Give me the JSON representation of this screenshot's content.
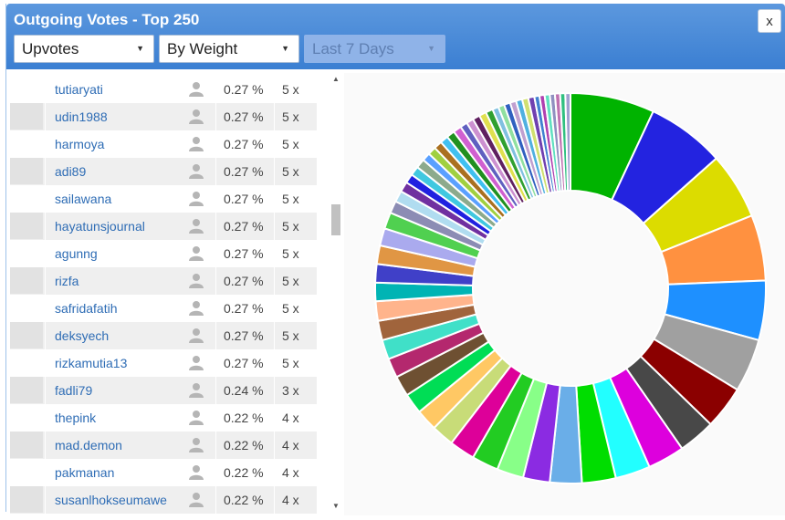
{
  "dialog": {
    "title": "Outgoing Votes - Top 250",
    "close_label": "x",
    "filters": [
      {
        "value": "Upvotes",
        "disabled": false
      },
      {
        "value": "By Weight",
        "disabled": false
      },
      {
        "value": "Last 7 Days",
        "disabled": true
      }
    ]
  },
  "rows": [
    {
      "name": "tutiaryati",
      "pct": "0.27 %",
      "count": "5 x"
    },
    {
      "name": "udin1988",
      "pct": "0.27 %",
      "count": "5 x"
    },
    {
      "name": "harmoya",
      "pct": "0.27 %",
      "count": "5 x"
    },
    {
      "name": "adi89",
      "pct": "0.27 %",
      "count": "5 x"
    },
    {
      "name": "sailawana",
      "pct": "0.27 %",
      "count": "5 x"
    },
    {
      "name": "hayatunsjournal",
      "pct": "0.27 %",
      "count": "5 x"
    },
    {
      "name": "agunng",
      "pct": "0.27 %",
      "count": "5 x"
    },
    {
      "name": "rizfa",
      "pct": "0.27 %",
      "count": "5 x"
    },
    {
      "name": "safridafatih",
      "pct": "0.27 %",
      "count": "5 x"
    },
    {
      "name": "deksyech",
      "pct": "0.27 %",
      "count": "5 x"
    },
    {
      "name": "rizkamutia13",
      "pct": "0.27 %",
      "count": "5 x"
    },
    {
      "name": "fadli79",
      "pct": "0.24 %",
      "count": "3 x"
    },
    {
      "name": "thepink",
      "pct": "0.22 %",
      "count": "4 x"
    },
    {
      "name": "mad.demon",
      "pct": "0.22 %",
      "count": "4 x"
    },
    {
      "name": "pakmanan",
      "pct": "0.22 %",
      "count": "4 x"
    },
    {
      "name": "susanlhokseumawe",
      "pct": "0.22 %",
      "count": "4 x"
    }
  ],
  "chart_data": {
    "type": "pie",
    "donut": true,
    "values": [
      8.2,
      7.6,
      6.5,
      6.4,
      5.8,
      5.2,
      4.2,
      3.6,
      3.6,
      3.4,
      3.3,
      3.1,
      2.6,
      2.6,
      2.6,
      2.5,
      2.2,
      2.1,
      2.0,
      2.0,
      1.9,
      1.9,
      1.9,
      1.9,
      1.8,
      1.8,
      1.8,
      1.7,
      1.6,
      1.2,
      1.1,
      1.0,
      0.9,
      0.9,
      0.9,
      0.8,
      0.8,
      0.8,
      0.8,
      0.8,
      0.8,
      0.7,
      0.7,
      0.7,
      0.7,
      0.7,
      0.6,
      0.6,
      0.6,
      0.6,
      0.6,
      0.6,
      0.6,
      0.5,
      0.5,
      0.5,
      0.5,
      0.5,
      0.5,
      0.5
    ],
    "colors": [
      "#00b300",
      "#2323e0",
      "#dcdc00",
      "#ff9140",
      "#1e90ff",
      "#a0a0a0",
      "#8b0000",
      "#484848",
      "#dd00dd",
      "#22ffff",
      "#00dd00",
      "#6aaee8",
      "#8b2be2",
      "#88ff88",
      "#22cc22",
      "#dd0099",
      "#c8dc78",
      "#ffc864",
      "#00dd55",
      "#6e5032",
      "#b4286e",
      "#40e0c8",
      "#a0643c",
      "#ffb48c",
      "#00b4b4",
      "#4040c8",
      "#e09644",
      "#aaaaee",
      "#50d050",
      "#8c8cb4",
      "#b0dcf0",
      "#7030a0",
      "#2020e0",
      "#40c8e0",
      "#8caa8c",
      "#5aa0ff",
      "#a0d040",
      "#aa7020",
      "#40c0f0",
      "#209020",
      "#d060d0",
      "#6060c0",
      "#cc90d0",
      "#602060",
      "#e0e050",
      "#30a030",
      "#80c0e0",
      "#90e0a0",
      "#3060c0",
      "#c0a0d0",
      "#50b0e0",
      "#d0e070",
      "#7040b0",
      "#4080d0",
      "#b040b0",
      "#60e0c0",
      "#9090c0",
      "#c070b0",
      "#30c080",
      "#a0a0d0"
    ]
  }
}
